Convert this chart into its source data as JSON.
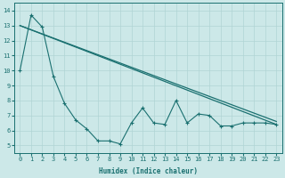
{
  "xlabel": "Humidex (Indice chaleur)",
  "background_color": "#cce8e8",
  "grid_color": "#b0d4d4",
  "line_color": "#1a7070",
  "xlim": [
    -0.5,
    23.5
  ],
  "ylim": [
    4.5,
    14.5
  ],
  "xticks": [
    0,
    1,
    2,
    3,
    4,
    5,
    6,
    7,
    8,
    9,
    10,
    11,
    12,
    13,
    14,
    15,
    16,
    17,
    18,
    19,
    20,
    21,
    22,
    23
  ],
  "yticks": [
    5,
    6,
    7,
    8,
    9,
    10,
    11,
    12,
    13,
    14
  ],
  "x": [
    0,
    1,
    2,
    3,
    4,
    5,
    6,
    7,
    8,
    9,
    10,
    11,
    12,
    13,
    14,
    15,
    16,
    17,
    18,
    19,
    20,
    21,
    22,
    23
  ],
  "line_straight1": {
    "x": [
      0,
      23
    ],
    "y": [
      13.0,
      6.4
    ]
  },
  "line_straight2": {
    "x": [
      0,
      23
    ],
    "y": [
      13.0,
      6.6
    ]
  },
  "line_zigzag": [
    10.0,
    13.7,
    12.9,
    9.6,
    7.8,
    6.7,
    6.1,
    5.3,
    5.3,
    5.1,
    6.5,
    7.5,
    6.5,
    6.4,
    8.0,
    6.5,
    7.1,
    7.0,
    6.3,
    6.3,
    6.5,
    6.5,
    6.5,
    6.4
  ]
}
